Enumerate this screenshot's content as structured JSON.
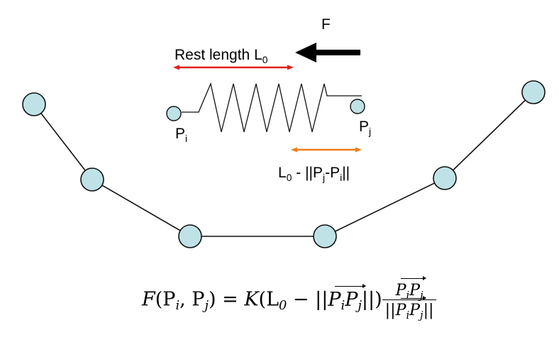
{
  "diagram": {
    "force_label": "F",
    "rest_length_label": "Rest length L",
    "rest_length_sub": "0",
    "pi_label": "P",
    "pi_sub": "i",
    "pj_label": "P",
    "pj_sub": "j",
    "displacement_label": {
      "l": "L",
      "l_sub": "0",
      "mid": " - ||P",
      "j_sub": "j",
      "dash": "-P",
      "i_sub": "i",
      "end": "||"
    },
    "colors": {
      "node_fill": "#bfe2e6",
      "node_stroke": "#111111",
      "rest_length_arrow": "#e0201c",
      "displacement_arrow": "#ef7d1a",
      "force_arrow": "#000000"
    }
  },
  "formula": {
    "lhs_F": "F",
    "lhs_args": "(P",
    "lhs_i": "i",
    "lhs_comma": ", P",
    "lhs_j": "j",
    "lhs_close": ")",
    "eq": " = ",
    "K": "K",
    "open": "(L",
    "L_sub": "0",
    "minus": " − ||",
    "vec_P1": "P",
    "vec_i": "i",
    "vec_P2": "P",
    "vec_j": "j",
    "close_norm": "||)",
    "num_P1": "P",
    "num_i": "i",
    "num_P2": "P",
    "num_j": "j",
    "den_open": "||",
    "den_P1": "P",
    "den_i": "i",
    "den_P2": "P",
    "den_j": "j",
    "den_close": "||"
  }
}
